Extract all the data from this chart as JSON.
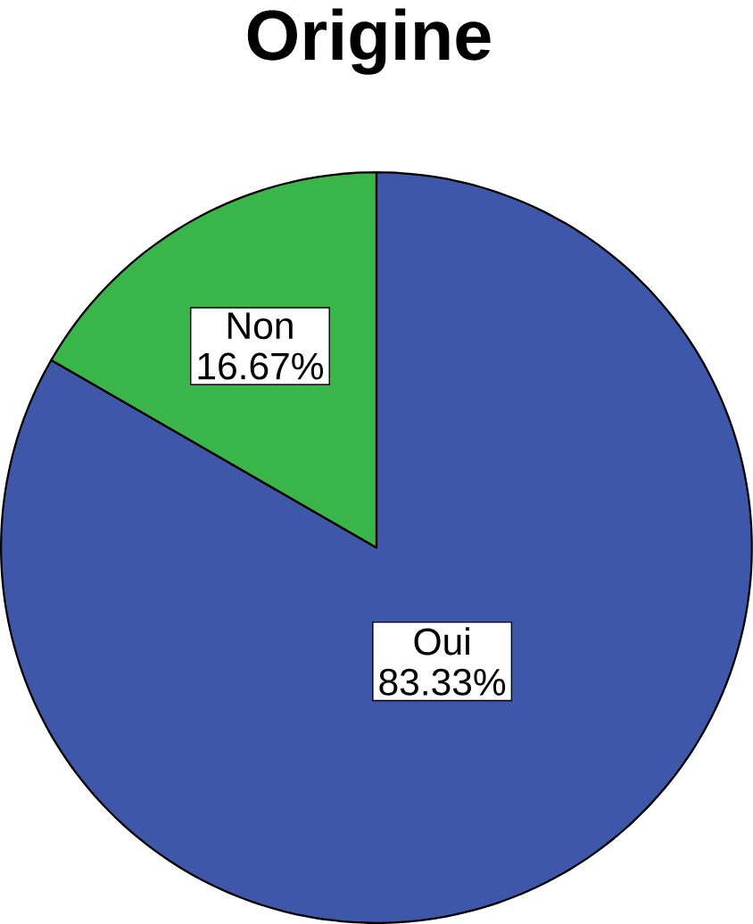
{
  "chart_data": {
    "type": "pie",
    "title": "Origine",
    "categories": [
      "Oui",
      "Non"
    ],
    "values": [
      83.33,
      16.67
    ],
    "colors": [
      "#3f57a8",
      "#3ab54a"
    ],
    "value_labels": [
      "83.33%",
      "16.67%"
    ]
  }
}
